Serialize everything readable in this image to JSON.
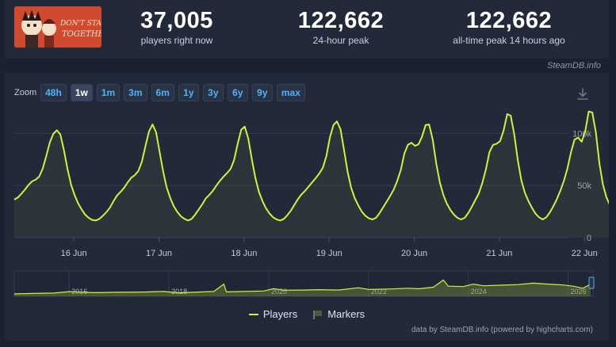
{
  "header": {
    "game_art_alt": "Don't Starve Together",
    "stats": [
      {
        "value": "37,005",
        "label": "players right now"
      },
      {
        "value": "122,662",
        "label": "24-hour peak"
      },
      {
        "value": "122,662",
        "label": "all-time peak 14 hours ago"
      }
    ],
    "brand": "SteamDB.info"
  },
  "zoom": {
    "label": "Zoom",
    "buttons": [
      "48h",
      "1w",
      "1m",
      "3m",
      "6m",
      "1y",
      "3y",
      "6y",
      "9y",
      "max"
    ],
    "active": "1w"
  },
  "legend": {
    "players": "Players",
    "markers": "Markers"
  },
  "credits": "data by SteamDB.info (powered by highcharts.com)",
  "colors": {
    "series": "#d4f03c",
    "accent": "#4fb3f5",
    "background": "#222a3a"
  },
  "chart_data": {
    "type": "area",
    "series_name": "Players",
    "x_start_day": 15.3,
    "x_step_hours": 1,
    "values": [
      36500,
      38500,
      42000,
      46000,
      50500,
      54000,
      55500,
      58500,
      66000,
      78000,
      91000,
      99500,
      103000,
      99000,
      84000,
      66000,
      51000,
      41000,
      33000,
      27000,
      22000,
      19000,
      17000,
      16500,
      18000,
      21000,
      24500,
      29000,
      35000,
      40500,
      44000,
      48000,
      53000,
      57500,
      60000,
      64000,
      73000,
      88000,
      102000,
      108500,
      101000,
      82000,
      63000,
      48000,
      38000,
      30000,
      24500,
      20500,
      18000,
      16500,
      18000,
      22000,
      27000,
      32000,
      37500,
      41000,
      45000,
      50000,
      54500,
      58500,
      62000,
      66000,
      74500,
      90000,
      103500,
      106500,
      95000,
      75000,
      57000,
      44000,
      35000,
      28000,
      23000,
      19500,
      17500,
      16500,
      18000,
      21500,
      26000,
      31500,
      37000,
      41500,
      45000,
      49000,
      53000,
      57000,
      61500,
      67000,
      78000,
      96000,
      108000,
      111500,
      104000,
      84000,
      63000,
      48000,
      38000,
      31000,
      25000,
      21000,
      18500,
      17500,
      19000,
      23500,
      29000,
      34500,
      40000,
      46000,
      54500,
      65000,
      80500,
      89000,
      91000,
      88000,
      89500,
      97000,
      108000,
      108500,
      94000,
      71000,
      53000,
      41000,
      32500,
      26500,
      22000,
      19000,
      17500,
      19000,
      23500,
      29500,
      36000,
      42500,
      52500,
      65500,
      82000,
      89000,
      90000,
      92500,
      103000,
      118500,
      117000,
      99000,
      74000,
      55000,
      43000,
      35000,
      28500,
      23000,
      19500,
      17500,
      19500,
      24000,
      30000,
      37000,
      45000,
      54500,
      66500,
      82000,
      94000,
      96000,
      92000,
      102000,
      121000,
      120000,
      101000,
      71000,
      51000,
      38500,
      31000,
      25000,
      21000,
      18500,
      22000,
      25500,
      29000,
      33000,
      35000
    ],
    "ylim": [
      0,
      120000
    ],
    "yticks": [
      {
        "value": 0,
        "label": "0"
      },
      {
        "value": 50000,
        "label": "50k"
      },
      {
        "value": 100000,
        "label": "100k"
      }
    ],
    "xlim_days": [
      15.3,
      22.1
    ],
    "xticks": [
      {
        "day": 16,
        "label": "16 Jun"
      },
      {
        "day": 17,
        "label": "17 Jun"
      },
      {
        "day": 18,
        "label": "18 Jun"
      },
      {
        "day": 19,
        "label": "19 Jun"
      },
      {
        "day": 20,
        "label": "20 Jun"
      },
      {
        "day": 21,
        "label": "21 Jun"
      },
      {
        "day": 22,
        "label": "22 Jun"
      }
    ],
    "grid": true,
    "navigator": {
      "type": "area",
      "x_start_year": 2014.9,
      "xlim": [
        2014.9,
        2026.5
      ],
      "ylim": [
        0,
        125000
      ],
      "points": [
        [
          2014.9,
          12000
        ],
        [
          2015.3,
          14000
        ],
        [
          2015.7,
          16000
        ],
        [
          2016.0,
          23000
        ],
        [
          2016.5,
          18000
        ],
        [
          2017.0,
          20000
        ],
        [
          2017.5,
          21000
        ],
        [
          2017.9,
          24000
        ],
        [
          2018.2,
          17000
        ],
        [
          2018.6,
          21000
        ],
        [
          2018.9,
          24000
        ],
        [
          2019.1,
          60000
        ],
        [
          2019.15,
          22000
        ],
        [
          2019.5,
          24000
        ],
        [
          2019.9,
          26000
        ],
        [
          2020.1,
          38000
        ],
        [
          2020.3,
          30000
        ],
        [
          2020.7,
          31000
        ],
        [
          2021.0,
          33000
        ],
        [
          2021.4,
          31000
        ],
        [
          2021.8,
          42000
        ],
        [
          2022.0,
          34000
        ],
        [
          2022.4,
          36000
        ],
        [
          2022.8,
          40000
        ],
        [
          2023.0,
          37000
        ],
        [
          2023.3,
          45000
        ],
        [
          2023.5,
          80000
        ],
        [
          2023.6,
          50000
        ],
        [
          2023.9,
          48000
        ],
        [
          2024.1,
          60000
        ],
        [
          2024.3,
          52000
        ],
        [
          2024.7,
          55000
        ],
        [
          2025.0,
          58000
        ],
        [
          2025.3,
          65000
        ],
        [
          2025.6,
          60000
        ],
        [
          2025.9,
          56000
        ],
        [
          2026.1,
          50000
        ],
        [
          2026.3,
          40000
        ],
        [
          2026.45,
          60000
        ]
      ],
      "xticks": [
        {
          "year": 2016,
          "label": "2016"
        },
        {
          "year": 2018,
          "label": "2018"
        },
        {
          "year": 2020,
          "label": "2020"
        },
        {
          "year": 2022,
          "label": "2022"
        },
        {
          "year": 2024,
          "label": "2024"
        },
        {
          "year": 2026,
          "label": "2026"
        }
      ]
    }
  }
}
